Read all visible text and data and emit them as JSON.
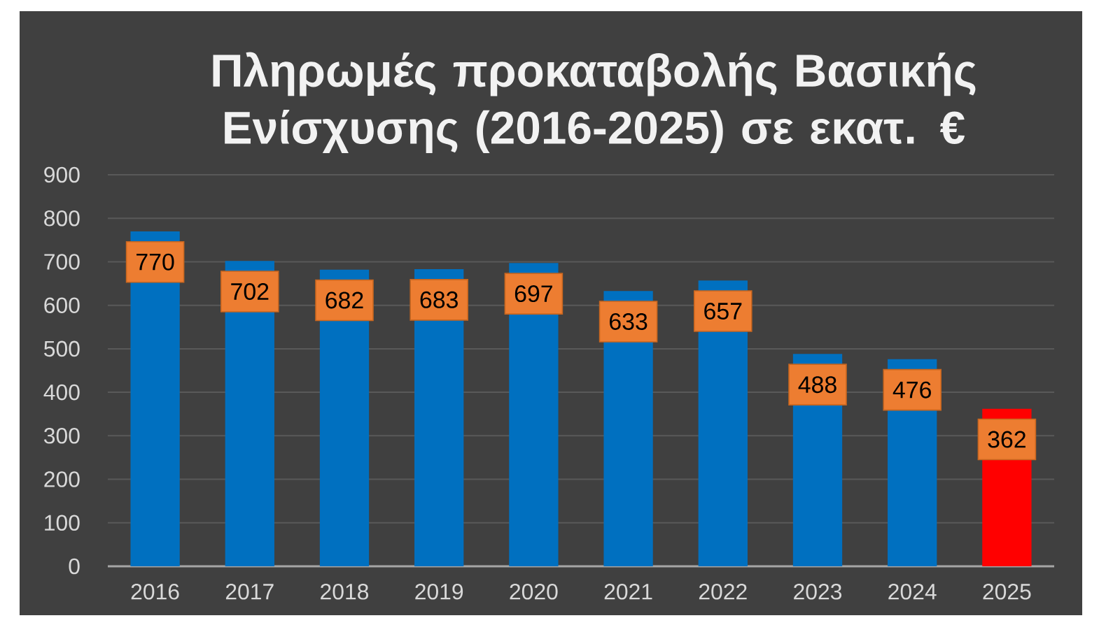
{
  "chart_data": {
    "type": "bar",
    "title": "Πληρωμές προκαταβολής Βασικής Ενίσχυσης (2016-2025) σε εκατ. €",
    "categories": [
      "2016",
      "2017",
      "2018",
      "2019",
      "2020",
      "2021",
      "2022",
      "2023",
      "2024",
      "2025"
    ],
    "values": [
      770,
      702,
      682,
      683,
      697,
      633,
      657,
      488,
      476,
      362
    ],
    "colors": [
      "#0070c0",
      "#0070c0",
      "#0070c0",
      "#0070c0",
      "#0070c0",
      "#0070c0",
      "#0070c0",
      "#0070c0",
      "#0070c0",
      "#ff0000"
    ],
    "ylim": [
      0,
      900
    ],
    "yticks": [
      0,
      100,
      200,
      300,
      400,
      500,
      600,
      700,
      800,
      900
    ],
    "grid": "y",
    "data_labels": true
  }
}
